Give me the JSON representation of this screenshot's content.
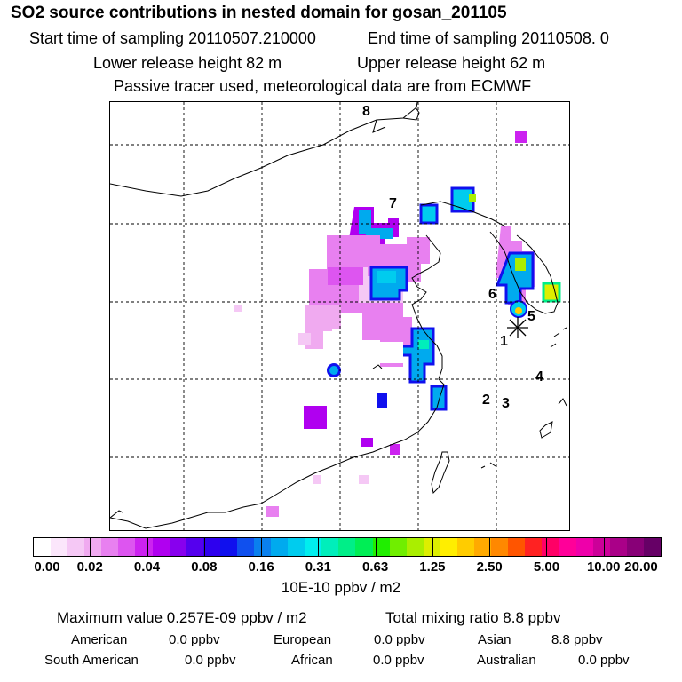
{
  "header": {
    "title": "SO2 source contributions in nested domain for gosan_201105",
    "start_label": "Start time of sampling 20110507.210000",
    "end_label": "End time of sampling 20110508.     0",
    "lower_release": "Lower release height   82 m",
    "upper_release": "Upper release height   62 m",
    "tracer_note": "Passive tracer used, meteorological data are from ECMWF"
  },
  "map": {
    "station_labels": [
      "8",
      "7",
      "6",
      "5",
      "1",
      "4",
      "2",
      "3"
    ],
    "receptor_marker": "gosan"
  },
  "colorbar": {
    "tick_labels": [
      "0.00",
      "0.02",
      "0.04",
      "0.08",
      "0.16",
      "0.31",
      "0.63",
      "1.25",
      "2.50",
      "5.00",
      "10.00",
      "20.00"
    ],
    "colors": [
      "#ffffff",
      "#fbe6fb",
      "#f5c8f5",
      "#f0aaf0",
      "#e880f0",
      "#dd55f0",
      "#cc22f0",
      "#b000f0",
      "#8800ee",
      "#5500ee",
      "#2e00ee",
      "#1010ee",
      "#1050ee",
      "#0a80ee",
      "#00aaee",
      "#00ccee",
      "#00eeee",
      "#00eebb",
      "#00ee88",
      "#00ee55",
      "#20ee00",
      "#70ee00",
      "#aaee00",
      "#ddee00",
      "#ffee00",
      "#ffcc00",
      "#ffaa00",
      "#ff8800",
      "#ff5500",
      "#ff2222",
      "#ff0066",
      "#ff0099",
      "#ee00aa",
      "#cc0099",
      "#aa0088",
      "#880077",
      "#660066"
    ],
    "unit": "10E-10 ppbv / m2"
  },
  "stats": {
    "maximum_line": "Maximum value  0.257E-09 ppbv / m2",
    "total_line": "Total mixing ratio       8.8 ppbv",
    "american_label": "American",
    "american_value": "0.0 ppbv",
    "european_label": "European",
    "european_value": "0.0 ppbv",
    "asian_label": "Asian",
    "asian_value": "8.8 ppbv",
    "south_american_label": "South American",
    "south_american_value": "0.0 ppbv",
    "african_label": "African",
    "african_value": "0.0 ppbv",
    "australian_label": "Australian",
    "australian_value": "0.0 ppbv"
  }
}
